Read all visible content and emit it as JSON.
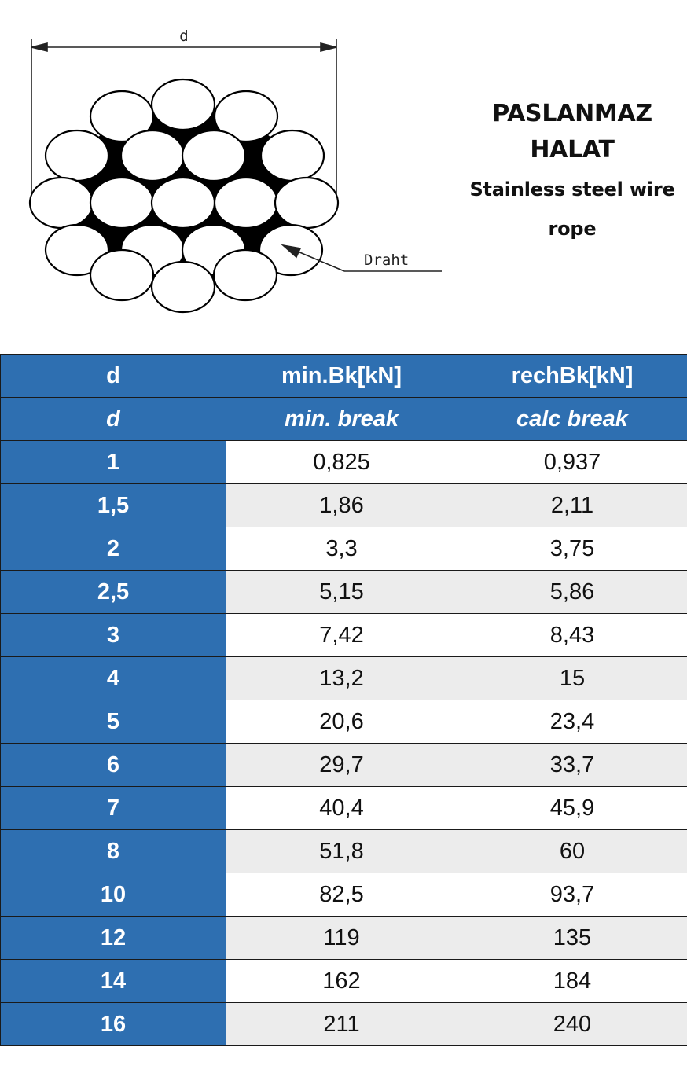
{
  "diagram": {
    "dimension_label": "d",
    "wire_label": "Draht"
  },
  "title": {
    "line1": "PASLANMAZ",
    "line2": "HALAT",
    "subtitle_line1": "Stainless steel wire",
    "subtitle_line2": "rope"
  },
  "table": {
    "header": [
      "d",
      "min.Bk[kN]",
      "rechBk[kN]"
    ],
    "subheader": [
      "d",
      "min. break",
      "calc break"
    ],
    "rows": [
      [
        "1",
        "0,825",
        "0,937"
      ],
      [
        "1,5",
        "1,86",
        "2,11"
      ],
      [
        "2",
        "3,3",
        "3,75"
      ],
      [
        "2,5",
        "5,15",
        "5,86"
      ],
      [
        "3",
        "7,42",
        "8,43"
      ],
      [
        "4",
        "13,2",
        "15"
      ],
      [
        "5",
        "20,6",
        "23,4"
      ],
      [
        "6",
        "29,7",
        "33,7"
      ],
      [
        "7",
        "40,4",
        "45,9"
      ],
      [
        "8",
        "51,8",
        "60"
      ],
      [
        "10",
        "82,5",
        "93,7"
      ],
      [
        "12",
        "119",
        "135"
      ],
      [
        "14",
        "162",
        "184"
      ],
      [
        "16",
        "211",
        "240"
      ]
    ]
  },
  "colors": {
    "header_blue": "#2e6fb1",
    "row_alt_gray": "#ececec"
  }
}
